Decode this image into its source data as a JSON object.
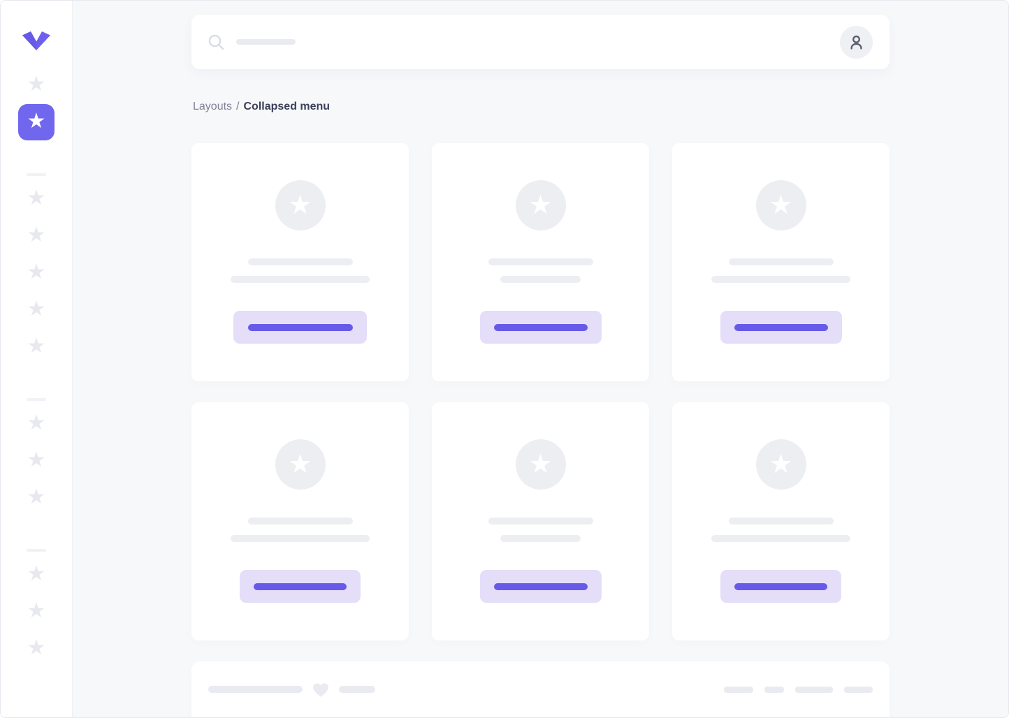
{
  "breadcrumb": {
    "parent": "Layouts",
    "separator": "/",
    "current": "Collapsed menu"
  },
  "colors": {
    "primary": "#7166ee",
    "primary_deep": "#685ae8",
    "primary_light": "#e4def9",
    "background": "#f7f8fa",
    "skeleton": "#e9ebf0"
  },
  "sidebar": {
    "logo_icon": "vuesax-logo",
    "groups": [
      {
        "items": [
          {
            "icon": "star",
            "active": false
          },
          {
            "icon": "star",
            "active": true
          }
        ]
      },
      {
        "items": [
          {
            "icon": "star"
          },
          {
            "icon": "star"
          },
          {
            "icon": "star"
          },
          {
            "icon": "star"
          },
          {
            "icon": "star"
          }
        ]
      },
      {
        "items": [
          {
            "icon": "star"
          },
          {
            "icon": "star"
          },
          {
            "icon": "star"
          }
        ]
      },
      {
        "items": [
          {
            "icon": "star"
          },
          {
            "icon": "star"
          },
          {
            "icon": "star"
          }
        ]
      }
    ]
  },
  "topbar": {
    "search_icon": "search-icon",
    "search_skeleton_w": 85,
    "user_icon": "user-icon"
  },
  "cards": [
    {
      "icon": "star",
      "line1_w": 150,
      "line2_w": 199,
      "button_w": 191,
      "button_line_w": 150
    },
    {
      "icon": "star",
      "line1_w": 150,
      "line2_w": 115,
      "button_w": 174,
      "button_line_w": 134
    },
    {
      "icon": "star",
      "line1_w": 150,
      "line2_w": 199,
      "button_w": 174,
      "button_line_w": 134
    },
    {
      "icon": "star",
      "line1_w": 150,
      "line2_w": 199,
      "button_w": 173,
      "button_line_w": 133
    },
    {
      "icon": "star",
      "line1_w": 150,
      "line2_w": 115,
      "button_w": 174,
      "button_line_w": 134
    },
    {
      "icon": "star",
      "line1_w": 150,
      "line2_w": 199,
      "button_w": 173,
      "button_line_w": 133
    }
  ],
  "footer": {
    "left_skeletons": [
      135,
      52
    ],
    "heart_icon": "heart-icon",
    "right_skeletons": [
      42,
      28,
      54,
      41
    ]
  }
}
